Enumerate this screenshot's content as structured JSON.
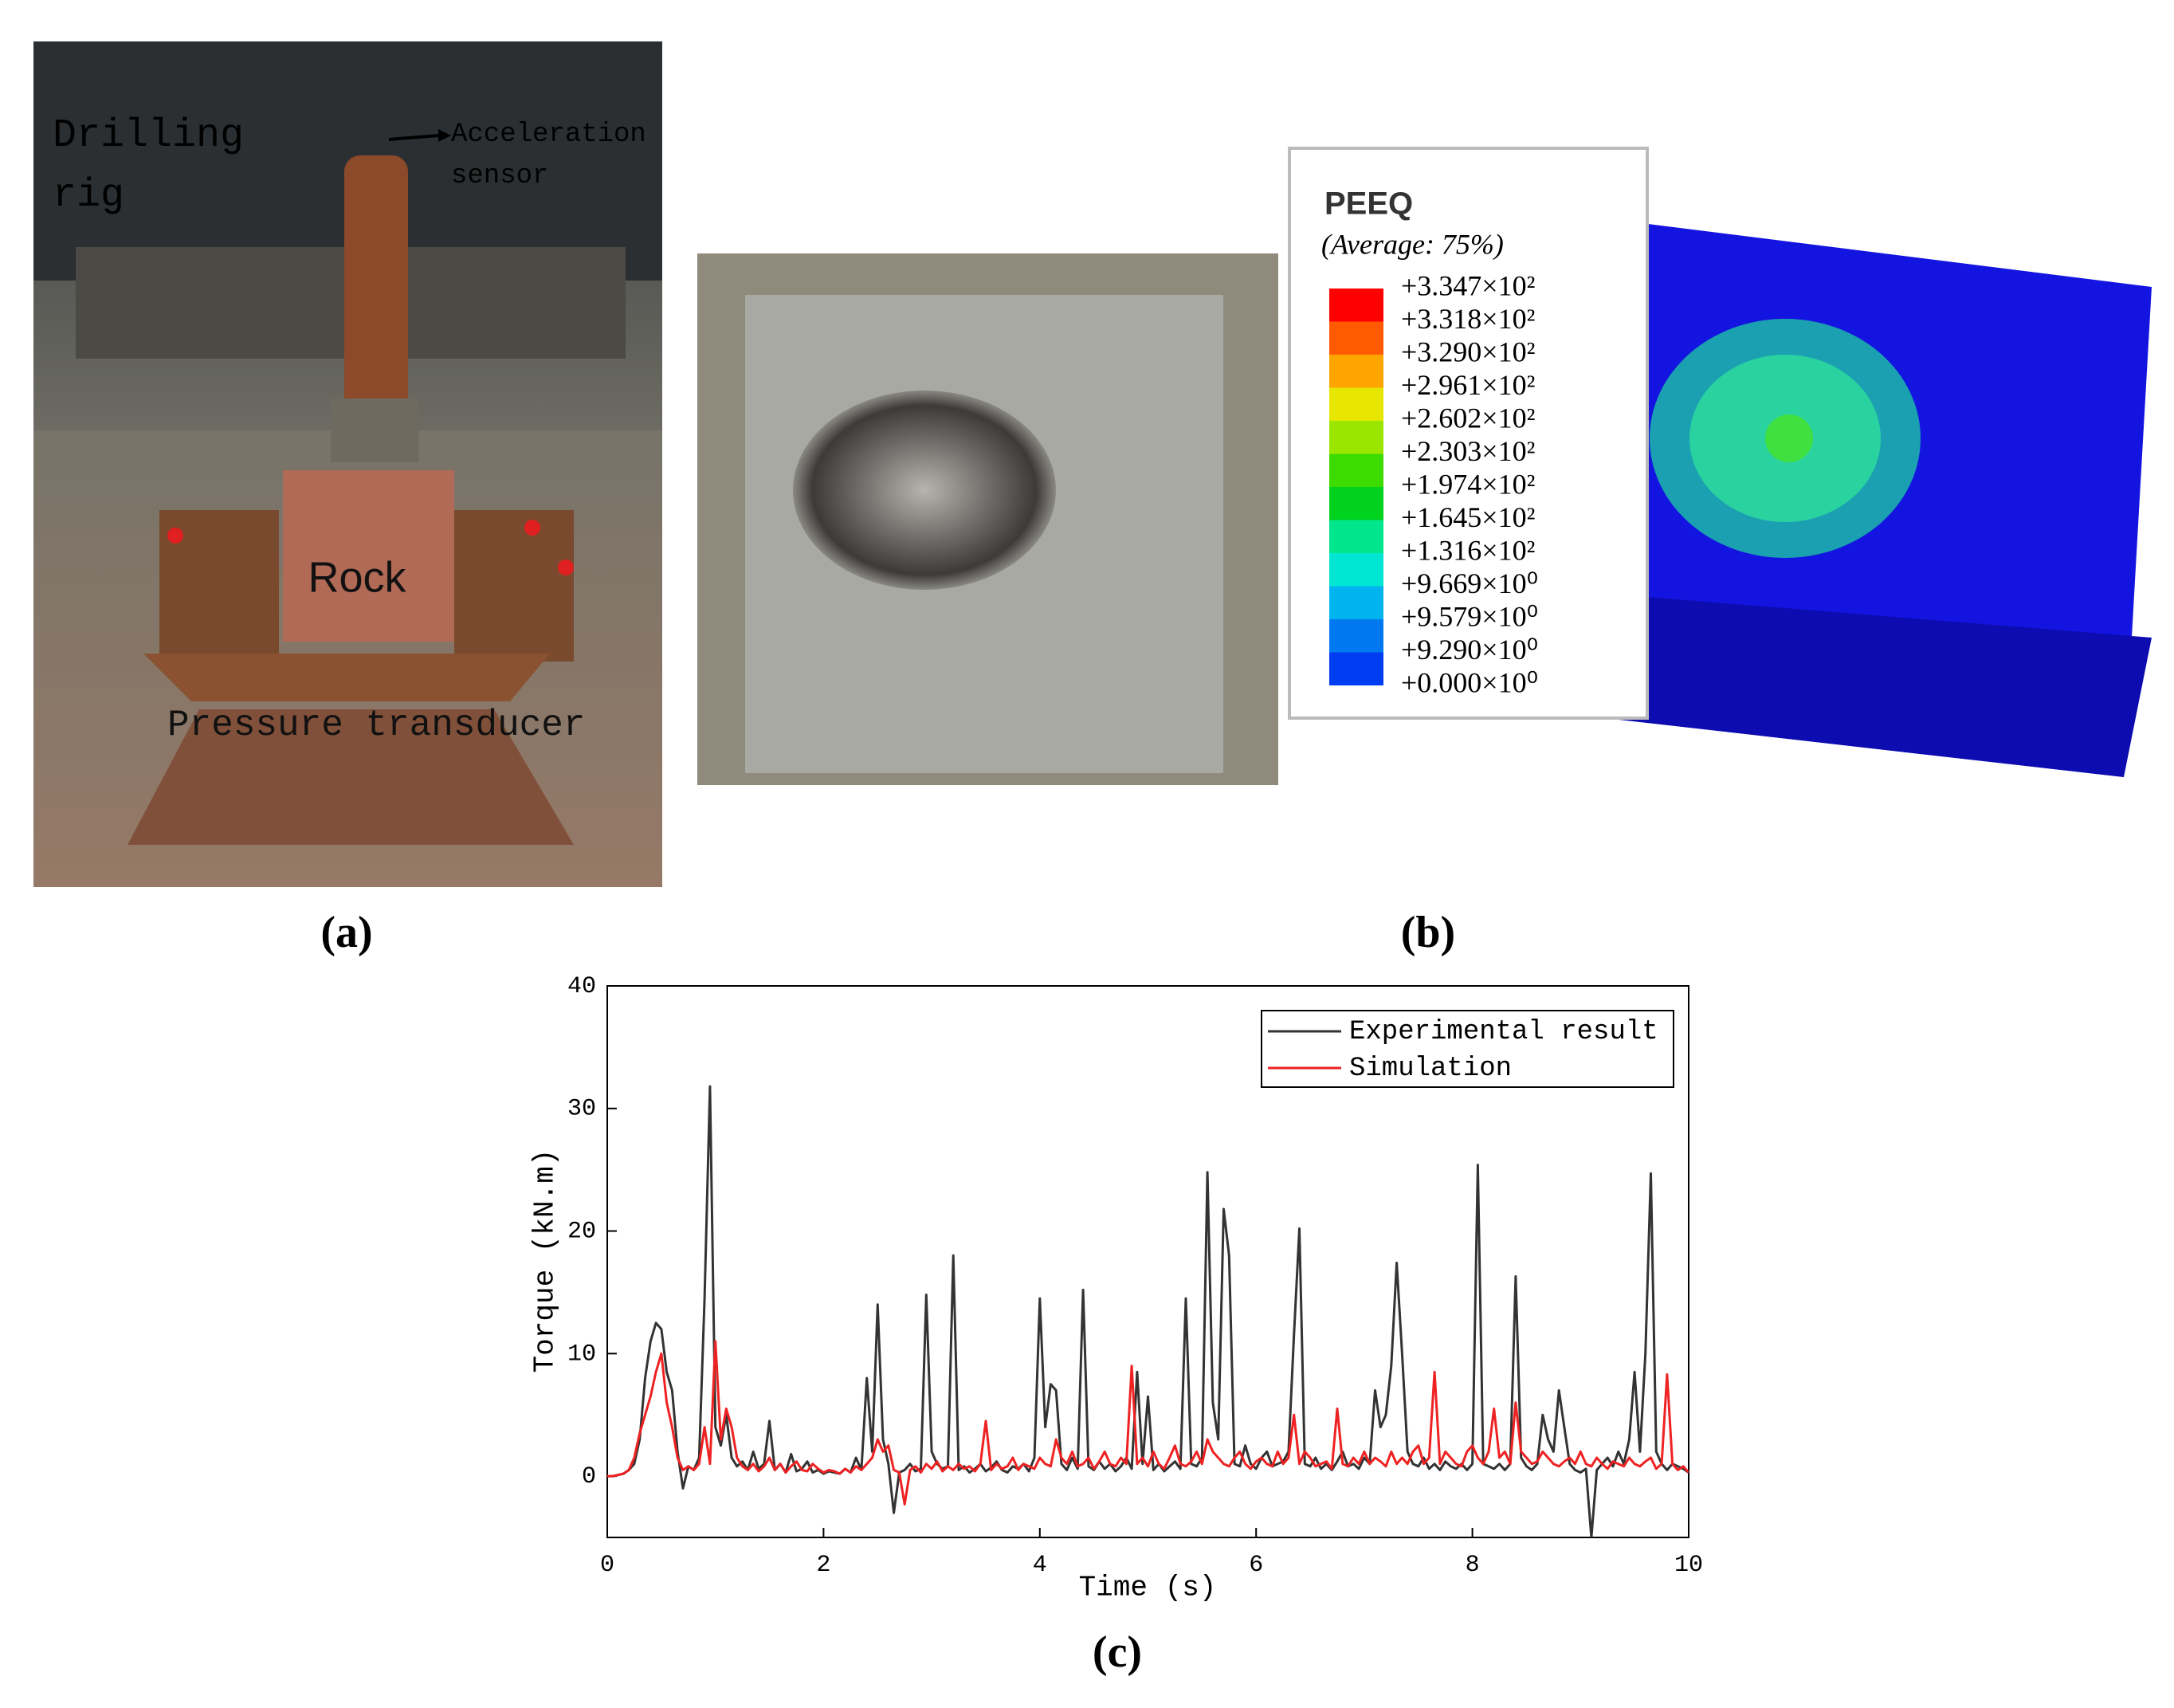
{
  "panels": {
    "a": {
      "caption": "(a)",
      "drilling_rig": [
        "Drilling",
        "rig"
      ],
      "acceleration_sensor": [
        "Acceleration",
        "sensor"
      ],
      "rock": "Rock",
      "pressure_transducer": "Pressure transducer"
    },
    "b": {
      "caption": "(b)",
      "legend_title": "PEEQ",
      "legend_subtitle": "(Average: 75%)",
      "legend": [
        {
          "label": "+3.347×10²",
          "color": "#ff0000"
        },
        {
          "label": "+3.318×10²",
          "color": "#ff5a00"
        },
        {
          "label": "+3.290×10²",
          "color": "#ffa500"
        },
        {
          "label": "+2.961×10²",
          "color": "#e6e600"
        },
        {
          "label": "+2.602×10²",
          "color": "#9be600"
        },
        {
          "label": "+2.303×10²",
          "color": "#3cdc00"
        },
        {
          "label": "+1.974×10²",
          "color": "#00d21e"
        },
        {
          "label": "+1.645×10²",
          "color": "#00e68c"
        },
        {
          "label": "+1.316×10²",
          "color": "#00e6d2"
        },
        {
          "label": "+9.669×10⁰",
          "color": "#00b4f0"
        },
        {
          "label": "+9.579×10⁰",
          "color": "#0078f0"
        },
        {
          "label": "+9.290×10⁰",
          "color": "#003cf0"
        },
        {
          "label": "+0.000×10⁰",
          "color": "#0000f0"
        }
      ]
    },
    "c": {
      "caption": "(c)"
    }
  },
  "chart_data": {
    "type": "line",
    "xlabel": "Time (s)",
    "ylabel": "Torque (kN.m)",
    "xlim": [
      0,
      10
    ],
    "ylim": [
      -5,
      40
    ],
    "xticks": [
      0,
      2,
      4,
      6,
      8,
      10
    ],
    "yticks": [
      0,
      10,
      20,
      30,
      40
    ],
    "legend": "upper right",
    "x": [
      0,
      0.05,
      0.1,
      0.15,
      0.2,
      0.25,
      0.3,
      0.35,
      0.4,
      0.45,
      0.5,
      0.55,
      0.6,
      0.65,
      0.7,
      0.75,
      0.8,
      0.85,
      0.9,
      0.95,
      1,
      1.05,
      1.1,
      1.15,
      1.2,
      1.25,
      1.3,
      1.35,
      1.4,
      1.45,
      1.5,
      1.55,
      1.6,
      1.65,
      1.7,
      1.75,
      1.8,
      1.85,
      1.9,
      1.95,
      2,
      2.05,
      2.1,
      2.15,
      2.2,
      2.25,
      2.3,
      2.35,
      2.4,
      2.45,
      2.5,
      2.55,
      2.6,
      2.65,
      2.7,
      2.75,
      2.8,
      2.85,
      2.9,
      2.95,
      3,
      3.05,
      3.1,
      3.15,
      3.2,
      3.25,
      3.3,
      3.35,
      3.4,
      3.45,
      3.5,
      3.55,
      3.6,
      3.65,
      3.7,
      3.75,
      3.8,
      3.85,
      3.9,
      3.95,
      4,
      4.05,
      4.1,
      4.15,
      4.2,
      4.25,
      4.3,
      4.35,
      4.4,
      4.45,
      4.5,
      4.55,
      4.6,
      4.65,
      4.7,
      4.75,
      4.8,
      4.85,
      4.9,
      4.95,
      5,
      5.05,
      5.1,
      5.15,
      5.2,
      5.25,
      5.3,
      5.35,
      5.4,
      5.45,
      5.5,
      5.55,
      5.6,
      5.65,
      5.7,
      5.75,
      5.8,
      5.85,
      5.9,
      5.95,
      6,
      6.05,
      6.1,
      6.15,
      6.2,
      6.25,
      6.3,
      6.35,
      6.4,
      6.45,
      6.5,
      6.55,
      6.6,
      6.65,
      6.7,
      6.75,
      6.8,
      6.85,
      6.9,
      6.95,
      7,
      7.05,
      7.1,
      7.15,
      7.2,
      7.25,
      7.3,
      7.35,
      7.4,
      7.45,
      7.5,
      7.55,
      7.6,
      7.65,
      7.7,
      7.75,
      7.8,
      7.85,
      7.9,
      7.95,
      8,
      8.05,
      8.1,
      8.15,
      8.2,
      8.25,
      8.3,
      8.35,
      8.4,
      8.45,
      8.5,
      8.55,
      8.6,
      8.65,
      8.7,
      8.75,
      8.8,
      8.85,
      8.9,
      8.95,
      9,
      9.05,
      9.1,
      9.15,
      9.2,
      9.25,
      9.3,
      9.35,
      9.4,
      9.45,
      9.5,
      9.55,
      9.6,
      9.65,
      9.7,
      9.75,
      9.8,
      9.85,
      9.9,
      9.95,
      10
    ],
    "series": [
      {
        "name": "Experimental result",
        "color": "#333333",
        "values": [
          0,
          0,
          0.1,
          0.2,
          0.5,
          1,
          3,
          8,
          11,
          12.5,
          12,
          8.5,
          7,
          2,
          -1,
          0.8,
          0.5,
          1.5,
          14.5,
          31.8,
          4,
          2.5,
          5,
          1.5,
          0.8,
          1.2,
          0.5,
          2,
          0.6,
          1,
          4.5,
          0.5,
          1,
          0.3,
          1.8,
          0.4,
          0.6,
          1.2,
          0.3,
          0.5,
          0.2,
          0.4,
          0.3,
          0.2,
          0.6,
          0.3,
          1.5,
          0.5,
          8,
          2,
          14,
          3,
          1,
          -3,
          0.3,
          0.5,
          1,
          0.4,
          0.6,
          14.8,
          2,
          1,
          0.6,
          0.8,
          18,
          0.5,
          0.8,
          0.3,
          0.6,
          1,
          0.4,
          0.7,
          1.2,
          0.5,
          0.3,
          0.8,
          0.6,
          1,
          0.4,
          1.5,
          14.5,
          4,
          7.5,
          7,
          1,
          0.5,
          1.5,
          0.6,
          15.2,
          0.8,
          0.5,
          1.2,
          0.6,
          1,
          0.4,
          0.8,
          1.5,
          0.6,
          8.5,
          1,
          6.5,
          0.5,
          1,
          0.4,
          0.8,
          1.2,
          0.6,
          14.5,
          1,
          0.8,
          1.5,
          24.8,
          6,
          3,
          21.8,
          18,
          1,
          0.8,
          2.5,
          1,
          0.6,
          1.5,
          2,
          0.8,
          1,
          1.2,
          2,
          11.5,
          20.2,
          1,
          0.8,
          1.5,
          0.6,
          1,
          0.5,
          1.2,
          2,
          0.8,
          1,
          0.6,
          1.5,
          1,
          7,
          4,
          5,
          9,
          17.4,
          10,
          2,
          1,
          0.8,
          1.5,
          0.6,
          1,
          0.5,
          1.2,
          0.8,
          0.6,
          1,
          0.5,
          1,
          25.4,
          1,
          0.8,
          0.6,
          1,
          0.5,
          1,
          16.3,
          1.5,
          0.8,
          0.5,
          1,
          5,
          3,
          2,
          7,
          4,
          1,
          0.5,
          0.3,
          0.6,
          -5,
          0.5,
          1,
          1.5,
          0.8,
          2,
          1,
          3,
          8.5,
          2,
          10,
          24.7,
          2,
          1,
          0.5,
          1,
          0.8,
          0.6,
          0.3
        ]
      },
      {
        "name": "Simulation",
        "color": "#ee2222",
        "values": [
          0,
          0,
          0.1,
          0.2,
          0.5,
          1.5,
          3.5,
          5,
          6.5,
          8.5,
          10,
          6,
          4,
          1.5,
          0.5,
          0.8,
          0.5,
          1,
          4,
          1,
          11,
          3,
          5.5,
          4,
          1.5,
          0.8,
          0.5,
          1,
          0.4,
          0.8,
          1.5,
          0.5,
          1,
          0.3,
          0.8,
          1.2,
          0.5,
          0.4,
          1,
          0.6,
          0.3,
          0.5,
          0.4,
          0.2,
          0.6,
          0.3,
          0.8,
          0.5,
          1,
          1.5,
          3,
          2,
          2.5,
          0.5,
          0.3,
          -2.3,
          0.5,
          0.8,
          0.3,
          1,
          0.6,
          1.2,
          0.4,
          0.8,
          0.5,
          1,
          0.6,
          0.8,
          0.4,
          1,
          4.5,
          0.5,
          1,
          0.6,
          0.8,
          1.5,
          0.5,
          1,
          0.8,
          0.6,
          1.5,
          1,
          0.8,
          3,
          1.5,
          1,
          2,
          0.8,
          1,
          1.5,
          0.6,
          1.2,
          2,
          1,
          0.8,
          1.5,
          1,
          9,
          1,
          1.5,
          0.8,
          2,
          1,
          0.6,
          1.5,
          2.5,
          1,
          0.8,
          1.2,
          2,
          1,
          3,
          2,
          1.5,
          1,
          0.8,
          1.5,
          2,
          1,
          0.6,
          1.2,
          1.5,
          1,
          0.8,
          2,
          1,
          1.5,
          5,
          1,
          2,
          1.5,
          0.8,
          1,
          1.2,
          0.6,
          5.5,
          1,
          0.8,
          1.5,
          1,
          2,
          1,
          1.5,
          1.2,
          0.8,
          2,
          1,
          1.5,
          1,
          2,
          2.5,
          1,
          1.5,
          8.5,
          1,
          2,
          1.5,
          1,
          0.8,
          2,
          2.5,
          1.5,
          1,
          2,
          5.5,
          1.5,
          2,
          1,
          6,
          2,
          1.5,
          1,
          1.2,
          2,
          1.5,
          1,
          0.8,
          1.2,
          1.5,
          1,
          2,
          1,
          0.8,
          1.5,
          1,
          0.6,
          1.2,
          1,
          0.8,
          1.5,
          1,
          0.8,
          1.2,
          1.5,
          0.6,
          1,
          8.3,
          1,
          0.5,
          0.8,
          0.3
        ]
      }
    ]
  }
}
